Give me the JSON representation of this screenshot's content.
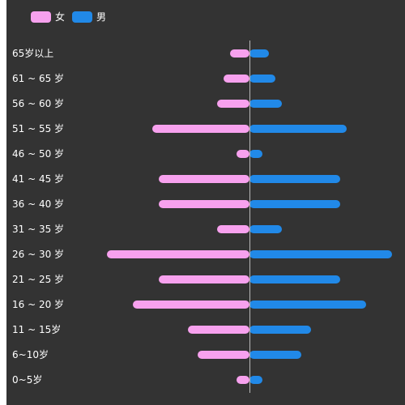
{
  "chart_data": {
    "type": "bar",
    "orientation": "horizontal",
    "layout": "population-pyramid",
    "title": "",
    "xlabel": "",
    "ylabel": "",
    "grid": false,
    "legend": "top-left",
    "categories": [
      "65岁以上",
      "61 ~ 65 岁",
      "56 ~ 60 岁",
      "51 ~ 55 岁",
      "46 ~ 50 岁",
      "41 ~ 45 岁",
      "36 ~ 40 岁",
      "31 ~ 35 岁",
      "26 ~ 30 岁",
      "21 ~ 25 岁",
      "16 ~ 20 岁",
      "11 ~ 15岁",
      "6~10岁",
      "0~5岁"
    ],
    "series": [
      {
        "name": "女",
        "color": "#f7a1ee",
        "side": "left",
        "values": [
          3,
          4,
          5,
          15,
          2,
          14,
          14,
          5,
          22,
          14,
          18,
          9.5,
          8,
          2
        ]
      },
      {
        "name": "男",
        "color": "#2189e8",
        "side": "right",
        "values": [
          3,
          4,
          5,
          15,
          2,
          14,
          14,
          5,
          22,
          14,
          18,
          9.5,
          8,
          2
        ]
      }
    ],
    "xlim": [
      -22,
      22
    ]
  }
}
